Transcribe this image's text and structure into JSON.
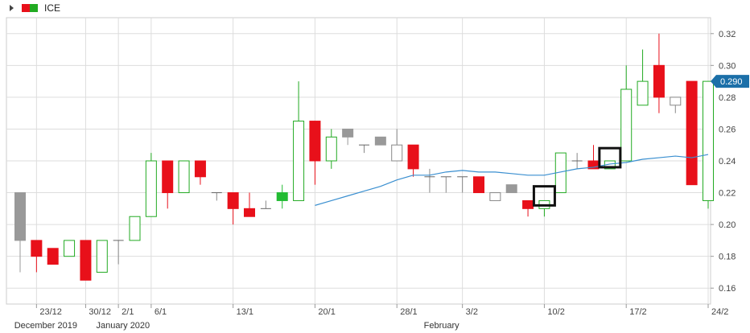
{
  "header": {
    "title": "ICE"
  },
  "chart_data": {
    "type": "candlestick",
    "title": "ICE",
    "ylim": [
      0.15,
      0.33
    ],
    "yticks": [
      0.16,
      0.18,
      0.2,
      0.22,
      0.24,
      0.26,
      0.28,
      0.3,
      0.32
    ],
    "ytick_labels": [
      "0.16",
      "0.18",
      "0.20",
      "0.22",
      "0.24",
      "0.26",
      "0.28",
      "0.30",
      "0.32"
    ],
    "current_price": 0.29,
    "current_price_label": "0.290",
    "x_ticks": [
      {
        "index": 1,
        "label": "23/12"
      },
      {
        "index": 4,
        "label": "30/12"
      },
      {
        "index": 6,
        "label": "2/1"
      },
      {
        "index": 8,
        "label": "6/1"
      },
      {
        "index": 13,
        "label": "13/1"
      },
      {
        "index": 18,
        "label": "20/1"
      },
      {
        "index": 23,
        "label": "28/1"
      },
      {
        "index": 27,
        "label": "3/2"
      },
      {
        "index": 32,
        "label": "10/2"
      },
      {
        "index": 37,
        "label": "17/2"
      },
      {
        "index": 42,
        "label": "24/2"
      }
    ],
    "month_labels": [
      {
        "index": 2,
        "label": "December 2019"
      },
      {
        "index": 7,
        "label": "January 2020"
      },
      {
        "index": 27,
        "label": "February"
      }
    ],
    "candles": [
      {
        "o": 0.22,
        "h": 0.22,
        "l": 0.17,
        "c": 0.19,
        "color": "gray"
      },
      {
        "o": 0.19,
        "h": 0.19,
        "l": 0.17,
        "c": 0.18,
        "color": "red"
      },
      {
        "o": 0.185,
        "h": 0.185,
        "l": 0.175,
        "c": 0.175,
        "color": "red"
      },
      {
        "o": 0.18,
        "h": 0.19,
        "l": 0.18,
        "c": 0.19,
        "color": "green"
      },
      {
        "o": 0.19,
        "h": 0.19,
        "l": 0.165,
        "c": 0.165,
        "color": "red"
      },
      {
        "o": 0.17,
        "h": 0.19,
        "l": 0.17,
        "c": 0.19,
        "color": "green"
      },
      {
        "o": 0.19,
        "h": 0.19,
        "l": 0.175,
        "c": 0.19,
        "color": "doji"
      },
      {
        "o": 0.19,
        "h": 0.205,
        "l": 0.19,
        "c": 0.205,
        "color": "green"
      },
      {
        "o": 0.205,
        "h": 0.245,
        "l": 0.205,
        "c": 0.24,
        "color": "green"
      },
      {
        "o": 0.24,
        "h": 0.24,
        "l": 0.21,
        "c": 0.22,
        "color": "red"
      },
      {
        "o": 0.22,
        "h": 0.24,
        "l": 0.22,
        "c": 0.24,
        "color": "green"
      },
      {
        "o": 0.24,
        "h": 0.24,
        "l": 0.225,
        "c": 0.23,
        "color": "red"
      },
      {
        "o": 0.22,
        "h": 0.22,
        "l": 0.215,
        "c": 0.22,
        "color": "doji"
      },
      {
        "o": 0.22,
        "h": 0.22,
        "l": 0.2,
        "c": 0.21,
        "color": "red"
      },
      {
        "o": 0.21,
        "h": 0.22,
        "l": 0.205,
        "c": 0.205,
        "color": "red"
      },
      {
        "o": 0.21,
        "h": 0.215,
        "l": 0.21,
        "c": 0.21,
        "color": "doji"
      },
      {
        "o": 0.215,
        "h": 0.225,
        "l": 0.21,
        "c": 0.22,
        "color": "solidgreen"
      },
      {
        "o": 0.215,
        "h": 0.29,
        "l": 0.215,
        "c": 0.265,
        "color": "green"
      },
      {
        "o": 0.265,
        "h": 0.265,
        "l": 0.225,
        "c": 0.24,
        "color": "red"
      },
      {
        "o": 0.24,
        "h": 0.26,
        "l": 0.235,
        "c": 0.255,
        "color": "green"
      },
      {
        "o": 0.26,
        "h": 0.26,
        "l": 0.25,
        "c": 0.255,
        "color": "gray"
      },
      {
        "o": 0.25,
        "h": 0.25,
        "l": 0.245,
        "c": 0.25,
        "color": "doji"
      },
      {
        "o": 0.255,
        "h": 0.255,
        "l": 0.25,
        "c": 0.25,
        "color": "gray"
      },
      {
        "o": 0.24,
        "h": 0.26,
        "l": 0.24,
        "c": 0.25,
        "color": "hollowgray"
      },
      {
        "o": 0.25,
        "h": 0.25,
        "l": 0.23,
        "c": 0.235,
        "color": "red"
      },
      {
        "o": 0.23,
        "h": 0.235,
        "l": 0.22,
        "c": 0.23,
        "color": "doji"
      },
      {
        "o": 0.23,
        "h": 0.23,
        "l": 0.22,
        "c": 0.23,
        "color": "doji"
      },
      {
        "o": 0.23,
        "h": 0.23,
        "l": 0.22,
        "c": 0.23,
        "color": "doji"
      },
      {
        "o": 0.23,
        "h": 0.23,
        "l": 0.22,
        "c": 0.22,
        "color": "red"
      },
      {
        "o": 0.215,
        "h": 0.22,
        "l": 0.215,
        "c": 0.22,
        "color": "hollowgray"
      },
      {
        "o": 0.225,
        "h": 0.225,
        "l": 0.22,
        "c": 0.22,
        "color": "gray"
      },
      {
        "o": 0.215,
        "h": 0.215,
        "l": 0.205,
        "c": 0.21,
        "color": "red"
      },
      {
        "o": 0.21,
        "h": 0.215,
        "l": 0.205,
        "c": 0.215,
        "color": "green"
      },
      {
        "o": 0.22,
        "h": 0.245,
        "l": 0.22,
        "c": 0.245,
        "color": "green"
      },
      {
        "o": 0.24,
        "h": 0.245,
        "l": 0.235,
        "c": 0.24,
        "color": "doji"
      },
      {
        "o": 0.24,
        "h": 0.25,
        "l": 0.235,
        "c": 0.235,
        "color": "red"
      },
      {
        "o": 0.235,
        "h": 0.24,
        "l": 0.235,
        "c": 0.24,
        "color": "green"
      },
      {
        "o": 0.24,
        "h": 0.3,
        "l": 0.24,
        "c": 0.285,
        "color": "green"
      },
      {
        "o": 0.275,
        "h": 0.31,
        "l": 0.275,
        "c": 0.29,
        "color": "green"
      },
      {
        "o": 0.3,
        "h": 0.32,
        "l": 0.27,
        "c": 0.28,
        "color": "red"
      },
      {
        "o": 0.275,
        "h": 0.28,
        "l": 0.27,
        "c": 0.28,
        "color": "hollowgray"
      },
      {
        "o": 0.29,
        "h": 0.29,
        "l": 0.225,
        "c": 0.225,
        "color": "red"
      },
      {
        "o": 0.215,
        "h": 0.29,
        "l": 0.21,
        "c": 0.29,
        "color": "green"
      }
    ],
    "moving_average": [
      {
        "index": 18,
        "value": 0.212
      },
      {
        "index": 19,
        "value": 0.215
      },
      {
        "index": 20,
        "value": 0.218
      },
      {
        "index": 21,
        "value": 0.221
      },
      {
        "index": 22,
        "value": 0.224
      },
      {
        "index": 23,
        "value": 0.228
      },
      {
        "index": 24,
        "value": 0.231
      },
      {
        "index": 25,
        "value": 0.231
      },
      {
        "index": 26,
        "value": 0.233
      },
      {
        "index": 27,
        "value": 0.234
      },
      {
        "index": 28,
        "value": 0.233
      },
      {
        "index": 29,
        "value": 0.233
      },
      {
        "index": 30,
        "value": 0.232
      },
      {
        "index": 31,
        "value": 0.231
      },
      {
        "index": 32,
        "value": 0.231
      },
      {
        "index": 33,
        "value": 0.233
      },
      {
        "index": 34,
        "value": 0.235
      },
      {
        "index": 35,
        "value": 0.236
      },
      {
        "index": 36,
        "value": 0.238
      },
      {
        "index": 37,
        "value": 0.239
      },
      {
        "index": 38,
        "value": 0.241
      },
      {
        "index": 39,
        "value": 0.242
      },
      {
        "index": 40,
        "value": 0.243
      },
      {
        "index": 41,
        "value": 0.242
      },
      {
        "index": 42,
        "value": 0.244
      }
    ],
    "highlight_boxes": [
      {
        "index": 32,
        "low": 0.212,
        "high": 0.224
      },
      {
        "index": 36,
        "low": 0.236,
        "high": 0.248
      }
    ],
    "grid": true,
    "colors": {
      "up": "#22aa22",
      "down": "#e8101a",
      "gray": "#999999",
      "solidgreen": "#22bb33",
      "ma": "#3a8fd0",
      "price_label": "#1b6fa8",
      "grid": "#dddddd"
    }
  }
}
